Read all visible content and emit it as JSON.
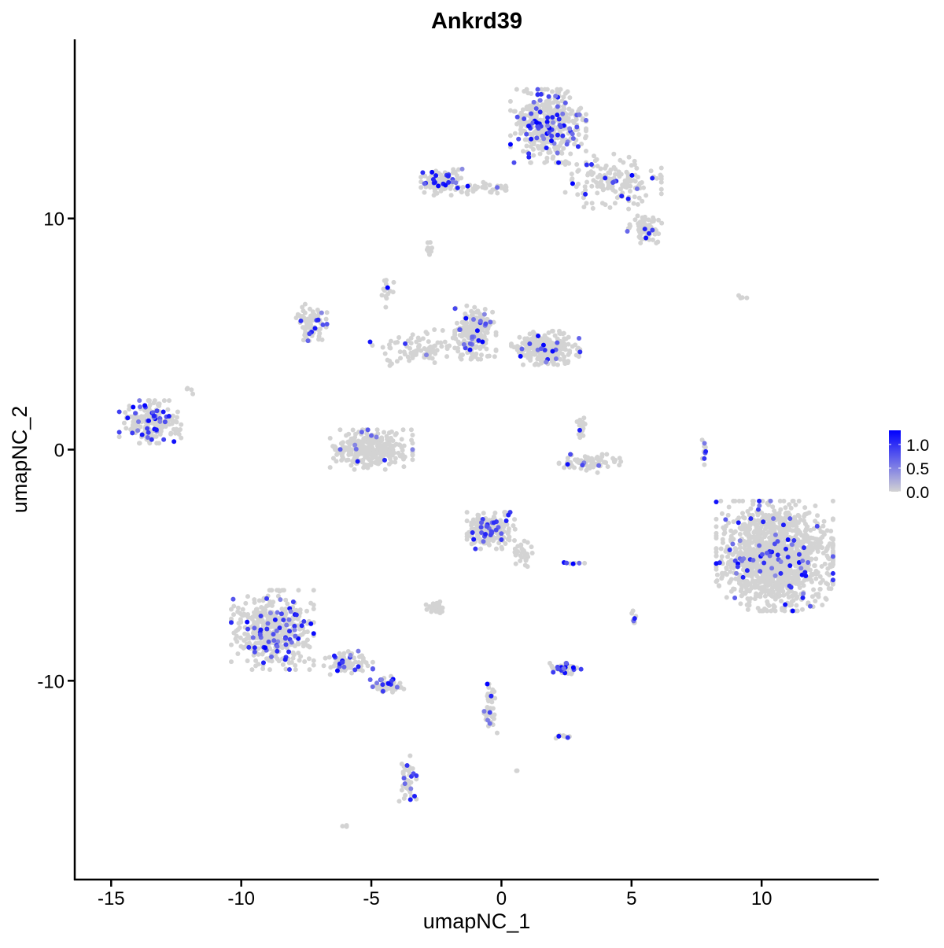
{
  "chart_data": {
    "type": "scatter",
    "title": "Ankrd39",
    "xlabel": "umapNC_1",
    "ylabel": "umapNC_2",
    "xlim": [
      -16.4,
      14.5
    ],
    "ylim": [
      -18.6,
      17.75
    ],
    "x_ticks": [
      -15,
      -10,
      -5,
      0,
      5,
      10
    ],
    "x_tick_labels": [
      "-15",
      "-10",
      "-5",
      "0",
      "5",
      "10"
    ],
    "y_ticks": [
      -10,
      0,
      10
    ],
    "y_tick_labels": [
      "-10",
      "0",
      "10"
    ],
    "grid": false,
    "legend": {
      "position": "right",
      "type": "colorbar",
      "range": [
        0,
        1.3
      ],
      "ticks": [
        0.0,
        0.5,
        1.0
      ],
      "tick_labels": [
        "0.0",
        "0.5",
        "1.0"
      ],
      "low_color": "#d3d3d3",
      "high_color": "#0000ff"
    },
    "clusters": [
      {
        "center": [
          1.8,
          14.0
        ],
        "spread": [
          1.1,
          1.2
        ],
        "n": 420,
        "expressed_fraction": 0.15
      },
      {
        "center": [
          4.3,
          11.6
        ],
        "spread": [
          1.4,
          0.9
        ],
        "n": 160,
        "expressed_fraction": 0.08
      },
      {
        "center": [
          5.5,
          9.6
        ],
        "spread": [
          0.5,
          0.5
        ],
        "n": 80,
        "expressed_fraction": 0.1
      },
      {
        "center": [
          -2.3,
          11.6
        ],
        "spread": [
          0.6,
          0.45
        ],
        "n": 130,
        "expressed_fraction": 0.12
      },
      {
        "center": [
          -0.6,
          11.3
        ],
        "spread": [
          1.0,
          0.2
        ],
        "n": 40,
        "expressed_fraction": 0.08
      },
      {
        "center": [
          -1.0,
          5.1
        ],
        "spread": [
          0.6,
          0.9
        ],
        "n": 220,
        "expressed_fraction": 0.12
      },
      {
        "center": [
          1.7,
          4.4
        ],
        "spread": [
          1.0,
          0.55
        ],
        "n": 260,
        "expressed_fraction": 0.06
      },
      {
        "center": [
          -7.3,
          5.5
        ],
        "spread": [
          0.45,
          0.6
        ],
        "n": 90,
        "expressed_fraction": 0.12
      },
      {
        "center": [
          -3.2,
          4.4
        ],
        "spread": [
          1.4,
          0.6
        ],
        "n": 90,
        "expressed_fraction": 0.08
      },
      {
        "center": [
          -4.4,
          6.8
        ],
        "spread": [
          0.2,
          0.5
        ],
        "n": 15,
        "expressed_fraction": 0.1
      },
      {
        "center": [
          -5.0,
          0.0
        ],
        "spread": [
          1.2,
          0.65
        ],
        "n": 320,
        "expressed_fraction": 0.04
      },
      {
        "center": [
          -13.5,
          1.2
        ],
        "spread": [
          0.9,
          0.7
        ],
        "n": 210,
        "expressed_fraction": 0.2
      },
      {
        "center": [
          10.5,
          -4.6
        ],
        "spread": [
          1.7,
          1.8
        ],
        "n": 1300,
        "expressed_fraction": 0.05
      },
      {
        "center": [
          -8.8,
          -7.8
        ],
        "spread": [
          1.2,
          1.3
        ],
        "n": 460,
        "expressed_fraction": 0.15
      },
      {
        "center": [
          -6.0,
          -9.2
        ],
        "spread": [
          0.8,
          0.4
        ],
        "n": 80,
        "expressed_fraction": 0.2
      },
      {
        "center": [
          -4.4,
          -10.2
        ],
        "spread": [
          0.5,
          0.3
        ],
        "n": 50,
        "expressed_fraction": 0.3
      },
      {
        "center": [
          -3.6,
          -14.3
        ],
        "spread": [
          0.25,
          0.8
        ],
        "n": 40,
        "expressed_fraction": 0.15
      },
      {
        "center": [
          -0.4,
          -3.5
        ],
        "spread": [
          0.7,
          0.6
        ],
        "n": 210,
        "expressed_fraction": 0.12
      },
      {
        "center": [
          0.85,
          -4.4
        ],
        "spread": [
          0.3,
          0.5
        ],
        "n": 30,
        "expressed_fraction": 0.05
      },
      {
        "center": [
          3.4,
          -0.6
        ],
        "spread": [
          0.9,
          0.3
        ],
        "n": 70,
        "expressed_fraction": 0.08
      },
      {
        "center": [
          3.1,
          1.0
        ],
        "spread": [
          0.2,
          0.4
        ],
        "n": 20,
        "expressed_fraction": 0.15
      },
      {
        "center": [
          2.4,
          -9.5
        ],
        "spread": [
          0.5,
          0.2
        ],
        "n": 50,
        "expressed_fraction": 0.3
      },
      {
        "center": [
          -2.5,
          -6.8
        ],
        "spread": [
          0.3,
          0.2
        ],
        "n": 30,
        "expressed_fraction": 0.05
      },
      {
        "center": [
          -0.4,
          -11.2
        ],
        "spread": [
          0.2,
          0.8
        ],
        "n": 40,
        "expressed_fraction": 0.25
      },
      {
        "center": [
          2.35,
          -12.4
        ],
        "spread": [
          0.2,
          0.1
        ],
        "n": 10,
        "expressed_fraction": 0.2
      },
      {
        "center": [
          5.1,
          -7.3
        ],
        "spread": [
          0.1,
          0.3
        ],
        "n": 8,
        "expressed_fraction": 0.3
      },
      {
        "center": [
          2.8,
          -4.9
        ],
        "spread": [
          0.3,
          0.05
        ],
        "n": 8,
        "expressed_fraction": 0.3
      },
      {
        "center": [
          7.8,
          -0.1
        ],
        "spread": [
          0.1,
          0.5
        ],
        "n": 10,
        "expressed_fraction": 0.2
      },
      {
        "center": [
          -2.8,
          8.7
        ],
        "spread": [
          0.15,
          0.2
        ],
        "n": 10,
        "expressed_fraction": 0.0
      },
      {
        "center": [
          -12.0,
          2.6
        ],
        "spread": [
          0.15,
          0.2
        ],
        "n": 4,
        "expressed_fraction": 0.0
      },
      {
        "center": [
          9.3,
          6.6
        ],
        "spread": [
          0.2,
          0.05
        ],
        "n": 4,
        "expressed_fraction": 0.0
      },
      {
        "center": [
          -6.0,
          -16.3
        ],
        "spread": [
          0.1,
          0.1
        ],
        "n": 3,
        "expressed_fraction": 0.0
      },
      {
        "center": [
          0.6,
          -13.9
        ],
        "spread": [
          0.05,
          0.05
        ],
        "n": 2,
        "expressed_fraction": 0.0
      }
    ]
  }
}
